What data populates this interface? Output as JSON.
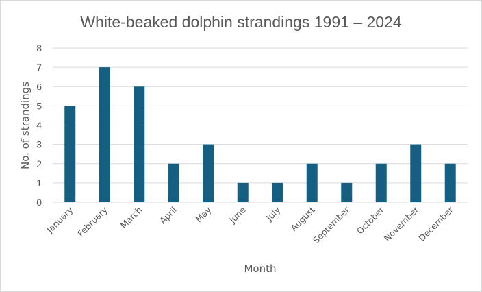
{
  "chart_data": {
    "type": "bar",
    "title": "White-beaked dolphin strandings 1991 – 2024",
    "xlabel": "Month",
    "ylabel": "No. of strandings",
    "categories": [
      "January",
      "February",
      "March",
      "April",
      "May",
      "June",
      "July",
      "August",
      "September",
      "October",
      "November",
      "December"
    ],
    "values": [
      5,
      7,
      6,
      2,
      3,
      1,
      1,
      2,
      1,
      2,
      3,
      2
    ],
    "ylim": [
      0,
      8
    ],
    "yticks": [
      "0",
      "1",
      "2",
      "3",
      "4",
      "5",
      "6",
      "7",
      "8"
    ],
    "grid": true,
    "legend": "none",
    "colors": {
      "bar": "#156082",
      "grid": "#d9d9d9",
      "text": "#595959"
    }
  }
}
